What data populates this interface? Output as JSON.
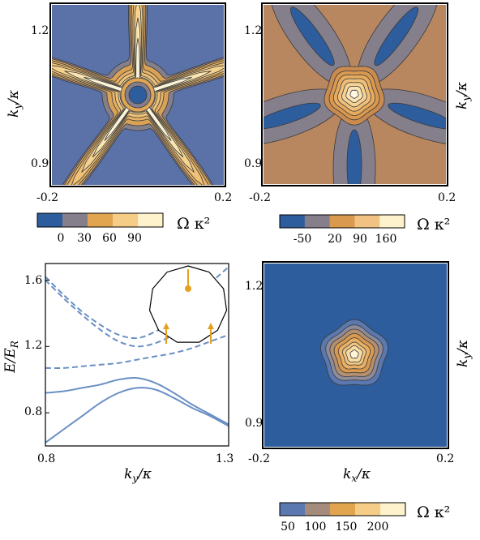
{
  "chart_data": [
    {
      "type": "heatmap",
      "panel": "top-left",
      "description_shape": "five-armed star",
      "xticks": [
        "-0.2",
        "0.2"
      ],
      "yticks": [
        "1.2",
        "0.9"
      ],
      "xlim": [
        -0.2,
        0.2
      ],
      "ylim": [
        0.85,
        1.25
      ],
      "ylabel": "k_y/κ",
      "colorbar": {
        "label": "Ω κ²",
        "ticks": [
          "0",
          "30",
          "60",
          "90"
        ],
        "colors": [
          "#2d5d9c",
          "#857f8c",
          "#e2a54f",
          "#f6cd86",
          "#fdf2cc"
        ]
      },
      "levels": [
        -15,
        0,
        15,
        30,
        45,
        60,
        75,
        90,
        105
      ],
      "center_value": -20
    },
    {
      "type": "heatmap",
      "panel": "top-right",
      "xticks": [
        "-0.2",
        "0.2"
      ],
      "yticks": [
        "1.2",
        "0.9"
      ],
      "xlim": [
        -0.2,
        0.2
      ],
      "ylim": [
        0.85,
        1.25
      ],
      "ylabel": "k_y/κ",
      "colorbar": {
        "label": "Ω κ²",
        "ticks": [
          "-50",
          "20",
          "90",
          "160"
        ],
        "colors": [
          "#2d5d9c",
          "#857f8c",
          "#d99a50",
          "#f2c282",
          "#fdf2cc"
        ]
      },
      "center_value": 190
    },
    {
      "type": "line",
      "panel": "bottom-left",
      "xlabel": "k_y/κ",
      "ylabel": "E/E_R",
      "xticks": [
        "0.8",
        "1.3"
      ],
      "yticks": [
        "1.6",
        "1.2",
        "0.8"
      ],
      "xlim": [
        0.8,
        1.3
      ],
      "ylim": [
        0.6,
        1.7
      ],
      "series": [
        {
          "style": "solid",
          "x": [
            0.8,
            0.85,
            0.9,
            0.95,
            1.0,
            1.05,
            1.1,
            1.15,
            1.2,
            1.25,
            1.3
          ],
          "y": [
            0.62,
            0.7,
            0.78,
            0.86,
            0.92,
            0.95,
            0.94,
            0.89,
            0.83,
            0.78,
            0.72
          ]
        },
        {
          "style": "solid",
          "x": [
            0.8,
            0.85,
            0.9,
            0.95,
            1.0,
            1.05,
            1.1,
            1.15,
            1.2,
            1.25,
            1.3
          ],
          "y": [
            0.92,
            0.93,
            0.95,
            0.97,
            1.0,
            1.01,
            0.98,
            0.92,
            0.85,
            0.79,
            0.73
          ]
        },
        {
          "style": "dashed",
          "x": [
            0.8,
            0.85,
            0.9,
            0.95,
            1.0,
            1.05,
            1.1,
            1.15,
            1.2,
            1.25,
            1.3
          ],
          "y": [
            1.07,
            1.07,
            1.08,
            1.09,
            1.1,
            1.12,
            1.14,
            1.16,
            1.19,
            1.23,
            1.27
          ]
        },
        {
          "style": "dashed",
          "x": [
            0.8,
            0.85,
            0.9,
            0.95,
            1.0,
            1.05,
            1.1,
            1.15,
            1.2,
            1.25,
            1.3
          ],
          "y": [
            1.6,
            1.49,
            1.39,
            1.3,
            1.23,
            1.2,
            1.22,
            1.27,
            1.33,
            1.38,
            1.42
          ]
        },
        {
          "style": "dashed",
          "x": [
            0.8,
            0.85,
            0.9,
            0.95,
            1.0,
            1.05,
            1.1,
            1.15,
            1.2,
            1.25,
            1.3
          ],
          "y": [
            1.62,
            1.51,
            1.41,
            1.33,
            1.27,
            1.25,
            1.29,
            1.36,
            1.47,
            1.58,
            1.68
          ]
        }
      ],
      "inset": "polygon with arrows"
    },
    {
      "type": "heatmap",
      "panel": "bottom-right",
      "xlabel": "k_x/κ",
      "ylabel": "k_y/κ",
      "xticks": [
        "-0.2",
        "0.2"
      ],
      "yticks": [
        "1.2",
        "0.9"
      ],
      "xlim": [
        -0.2,
        0.2
      ],
      "ylim": [
        0.85,
        1.25
      ],
      "colorbar": {
        "label": "Ω κ²",
        "ticks": [
          "50",
          "100",
          "150",
          "200"
        ],
        "colors": [
          "#5b79b0",
          "#a48b7b",
          "#e2a54f",
          "#f6cd86",
          "#fdf2cc"
        ]
      },
      "center_value": 240
    }
  ],
  "colors": {
    "star_background": "#5a72a8",
    "tr_background": "#b9875f",
    "br_background": "#2d5d9c",
    "line_color": "#6a8fc4",
    "inset_arrow": "#e69f21"
  }
}
